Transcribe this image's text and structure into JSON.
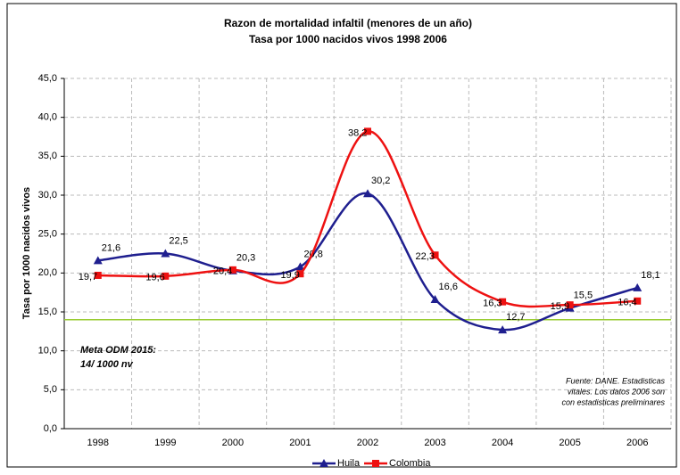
{
  "chart_data": {
    "type": "line",
    "title": "Razon de mortalidad infaltil (menores de un año)",
    "subtitle": "Tasa por 1000 nacidos vivos 1998 2006",
    "y_label": "Tasa por 1000 nacidos vivos",
    "categories": [
      "1998",
      "1999",
      "2000",
      "2001",
      "2002",
      "2003",
      "2004",
      "2005",
      "2006"
    ],
    "series": [
      {
        "name": "Huila",
        "color": "#1f1f8f",
        "marker": "triangle",
        "values": [
          21.6,
          22.5,
          20.3,
          20.8,
          30.2,
          16.6,
          12.7,
          15.5,
          18.1
        ],
        "value_labels": [
          "21,6",
          "22,5",
          "20,3",
          "20,8",
          "30,2",
          "16,6",
          "12,7",
          "15,5",
          "18,1"
        ]
      },
      {
        "name": "Colombia",
        "color": "#ee1111",
        "marker": "square",
        "values": [
          19.7,
          19.6,
          20.4,
          19.9,
          38.2,
          22.3,
          16.3,
          15.9,
          16.4
        ],
        "value_labels": [
          "19,7",
          "19,6",
          "20,4",
          "19,9",
          "38,2",
          "22,3",
          "16,3",
          "15,9",
          "16,4"
        ]
      }
    ],
    "ylim": [
      0,
      45
    ],
    "yticks": [
      {
        "value": 0,
        "label": "0,0"
      },
      {
        "value": 5,
        "label": "5,0"
      },
      {
        "value": 10,
        "label": "10,0"
      },
      {
        "value": 15,
        "label": "15,0"
      },
      {
        "value": 20,
        "label": "20,0"
      },
      {
        "value": 25,
        "label": "25,0"
      },
      {
        "value": 30,
        "label": "30,0"
      },
      {
        "value": 35,
        "label": "35,0"
      },
      {
        "value": 40,
        "label": "40,0"
      },
      {
        "value": 45,
        "label": "45,0"
      }
    ],
    "grid": true,
    "target": {
      "value": 14,
      "color": "#99cc33",
      "label_lines": [
        "Meta ODM 2015:",
        "14/ 1000 nv"
      ]
    },
    "source_lines": [
      "Fuente: DANE. Estadisticas",
      "vitales. Los datos 2006 son",
      "con estadisticas preliminares"
    ],
    "legend": "bottom"
  }
}
